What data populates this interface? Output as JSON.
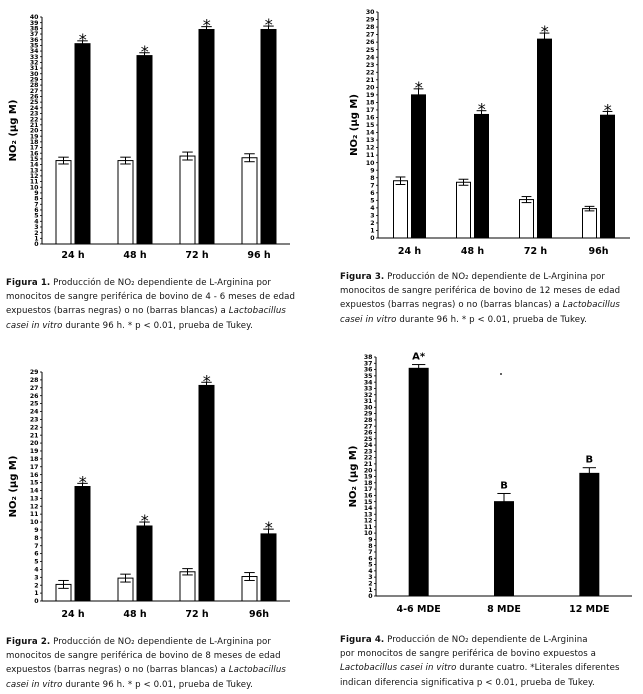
{
  "chart_data": [
    {
      "type": "bar",
      "ylabel": "NO₂ (µg M)",
      "ylim": [
        0,
        40
      ],
      "yticks": [
        "0",
        "1",
        "2",
        "3",
        "4",
        "5",
        "6",
        "7",
        "8",
        "9",
        "10",
        "11",
        "12",
        "13",
        "14",
        "15",
        "16",
        "17",
        "18",
        "19",
        "20",
        "21",
        "22",
        "23",
        "24",
        "25",
        "26",
        "27",
        "28",
        "29",
        "30",
        "31",
        "32",
        "33",
        "34",
        "35",
        "36",
        "37",
        "38",
        "39",
        "40"
      ],
      "categories": [
        "24 h",
        "48 h",
        "72 h",
        "96 h"
      ],
      "series": [
        {
          "fill": "white",
          "values": [
            14.7,
            14.7,
            15.5,
            15.2
          ],
          "errors": [
            0.6,
            0.6,
            0.7,
            0.7
          ]
        },
        {
          "fill": "black",
          "values": [
            35.3,
            33.2,
            37.8,
            37.8
          ],
          "errors": [
            0.5,
            0.5,
            0.5,
            0.6
          ],
          "annotations": [
            "*",
            "*",
            "*",
            "*"
          ]
        }
      ]
    },
    {
      "type": "bar",
      "ylabel": "NO₂ (µg M)",
      "ylim": [
        0,
        30
      ],
      "yticks": [
        "0",
        "1",
        "2",
        "3",
        "4",
        "5",
        "6",
        "7",
        "8",
        "9",
        "10",
        "11",
        "12",
        "13",
        "14",
        "15",
        "16",
        "17",
        "18",
        "19",
        "20",
        "21",
        "22",
        "23",
        "24",
        "25",
        "26",
        "27",
        "28",
        "29",
        "30"
      ],
      "categories": [
        "24 h",
        "48 h",
        "72 h",
        "96h"
      ],
      "series": [
        {
          "fill": "white",
          "values": [
            7.6,
            7.4,
            5.1,
            3.9
          ],
          "errors": [
            0.5,
            0.4,
            0.4,
            0.3
          ]
        },
        {
          "fill": "black",
          "values": [
            19.0,
            16.4,
            26.4,
            16.3
          ],
          "errors": [
            0.8,
            0.5,
            0.8,
            0.5
          ],
          "annotations": [
            "*",
            "*",
            "*",
            "*"
          ]
        }
      ]
    },
    {
      "type": "bar",
      "ylabel": "NO₂ (µg M)",
      "ylim": [
        0,
        29
      ],
      "yticks": [
        "0",
        "1",
        "2",
        "3",
        "4",
        "5",
        "6",
        "7",
        "8",
        "9",
        "10",
        "11",
        "12",
        "13",
        "14",
        "15",
        "16",
        "17",
        "18",
        "19",
        "20",
        "21",
        "22",
        "23",
        "24",
        "25",
        "26",
        "27",
        "28",
        "29"
      ],
      "categories": [
        "24 h",
        "48 h",
        "72 h",
        "96h"
      ],
      "series": [
        {
          "fill": "white",
          "values": [
            2.1,
            2.9,
            3.7,
            3.1
          ],
          "errors": [
            0.5,
            0.5,
            0.4,
            0.5
          ]
        },
        {
          "fill": "black",
          "values": [
            14.5,
            9.5,
            27.3,
            8.5
          ],
          "errors": [
            0.4,
            0.5,
            0.4,
            0.6
          ],
          "annotations": [
            "*",
            "*",
            "*",
            "*"
          ]
        }
      ]
    },
    {
      "type": "bar",
      "ylabel": "NO₂ (µg M)",
      "ylim": [
        0,
        38
      ],
      "yticks": [
        "0",
        "1",
        "2",
        "3",
        "4",
        "5",
        "6",
        "7",
        "8",
        "9",
        "10",
        "11",
        "12",
        "13",
        "14",
        "15",
        "16",
        "17",
        "18",
        "19",
        "20",
        "21",
        "22",
        "23",
        "24",
        "25",
        "26",
        "27",
        "28",
        "29",
        "30",
        "31",
        "32",
        "33",
        "34",
        "35",
        "36",
        "37",
        "38"
      ],
      "categories": [
        "4-6 MDE",
        "8 MDE",
        "12 MDE"
      ],
      "series": [
        {
          "fill": "black",
          "values": [
            36.2,
            15.0,
            19.5
          ],
          "errors": [
            0.6,
            1.3,
            0.9
          ],
          "annotations": [
            "A*",
            "B",
            "B"
          ]
        }
      ]
    }
  ],
  "captions": {
    "fig1": {
      "label": "Figura 1.",
      "line1": "Producción de NO₂ dependiente de L-Arginina por",
      "line2": "monocitos de sangre periférica de bovino de 4 - 6 meses de edad",
      "line3": "expuestos (barras negras) o no (barras blancas) a",
      "italic3": "Lactobacillus",
      "italic4": "casei in vitro",
      "line4": "durante 96 h. * p < 0.01, prueba de Tukey."
    },
    "fig3": {
      "label": "Figura 3.",
      "line1": "Producción de NO₂ dependiente de L-Arginina por",
      "line2": "monocitos de sangre periférica de bovino de 12 meses de edad",
      "line3": "expuestos (barras negras) o no (barras blancas) a",
      "italic3": "Lactobacillus",
      "italic4": "casei in vitro",
      "line4": "durante 96 h. * p < 0.01, prueba de Tukey."
    },
    "fig2": {
      "label": "Figura 2.",
      "line1": "Producción de NO₂ dependiente de L-Arginina por",
      "line2": "monocitos de sangre periférica de bovino de 8 meses de edad",
      "line3": "expuestos (barras negras) o no (barras blancas) a",
      "italic3": "Lactobacillus",
      "italic4": "casei in vitro",
      "line4": "durante 96 h. * p < 0.01, prueba de Tukey."
    },
    "fig4": {
      "label": "Figura 4.",
      "line1": "Producción de NO₂ dependiente de L-Arginina",
      "line2": "por monocitos de sangre periférica de bovino expuestos a",
      "italic3": "Lactobacillus casei in vitro",
      "line3": "durante cuatro. *Literales diferentes",
      "line4": "indican diferencia significativa p < 0.01, prueba de Tukey."
    }
  }
}
